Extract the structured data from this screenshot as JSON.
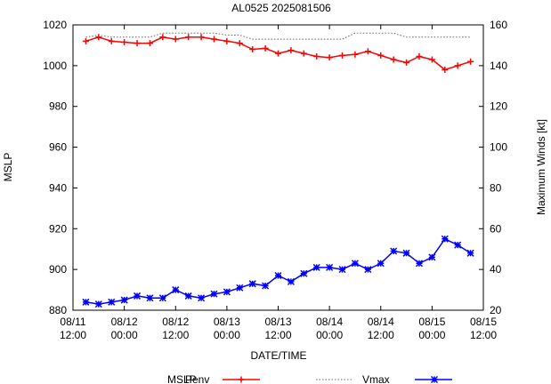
{
  "chart_data": {
    "type": "line",
    "title": "AL0525 2025081506",
    "xlabel": "DATE/TIME",
    "ylabel_left": "MSLP",
    "ylabel_right": "Maximum Winds [kt]",
    "x_ticks": [
      {
        "hours": 0,
        "line1": "08/11",
        "line2": "12:00"
      },
      {
        "hours": 12,
        "line1": "08/12",
        "line2": "00:00"
      },
      {
        "hours": 24,
        "line1": "08/12",
        "line2": "12:00"
      },
      {
        "hours": 36,
        "line1": "08/13",
        "line2": "00:00"
      },
      {
        "hours": 48,
        "line1": "08/13",
        "line2": "12:00"
      },
      {
        "hours": 60,
        "line1": "08/14",
        "line2": "00:00"
      },
      {
        "hours": 72,
        "line1": "08/14",
        "line2": "12:00"
      },
      {
        "hours": 84,
        "line1": "08/15",
        "line2": "00:00"
      },
      {
        "hours": 96,
        "line1": "08/15",
        "line2": "12:00"
      }
    ],
    "xlim_hours": [
      0,
      96
    ],
    "ylim_left": [
      880,
      1020
    ],
    "yticks_left": [
      "880",
      "900",
      "920",
      "940",
      "960",
      "980",
      "1000",
      "1020"
    ],
    "ylim_right": [
      20,
      160
    ],
    "yticks_right": [
      "20",
      "40",
      "60",
      "80",
      "100",
      "120",
      "140",
      "160"
    ],
    "legend_position": "bottom",
    "legend_heading": "MSLP",
    "series": [
      {
        "name": "Penv",
        "axis": "left",
        "color": "#ff0000",
        "marker": "plus",
        "x_hours": [
          3,
          6,
          9,
          12,
          15,
          18,
          21,
          24,
          27,
          30,
          33,
          36,
          39,
          42,
          45,
          48,
          51,
          54,
          57,
          60,
          63,
          66,
          69,
          72,
          75,
          78,
          81,
          84,
          87,
          90,
          93
        ],
        "values": [
          1012,
          1014,
          1012,
          1011.5,
          1011,
          1011,
          1014,
          1013,
          1014,
          1014,
          1013,
          1012,
          1011,
          1008,
          1008.5,
          1006,
          1007.5,
          1006,
          1004.5,
          1004,
          1005,
          1005.5,
          1007,
          1005,
          1003,
          1001.5,
          1004.5,
          1003,
          998,
          1000,
          1002
        ]
      },
      {
        "name": "",
        "axis": "left",
        "color": "#666666",
        "marker": "none",
        "dash": true,
        "x_hours": [
          3,
          6,
          9,
          12,
          15,
          18,
          21,
          24,
          27,
          30,
          33,
          36,
          39,
          42,
          45,
          48,
          51,
          54,
          57,
          60,
          63,
          66,
          69,
          72,
          75,
          78,
          81,
          84,
          87,
          90,
          93
        ],
        "values": [
          1014,
          1015,
          1014,
          1014,
          1014,
          1014,
          1016,
          1016,
          1016,
          1016,
          1016,
          1015,
          1015,
          1013,
          1013,
          1013,
          1013,
          1013,
          1013,
          1013,
          1013,
          1016,
          1016,
          1016,
          1016,
          1014,
          1014,
          1014,
          1014,
          1014,
          1014
        ]
      },
      {
        "name": "Vmax",
        "axis": "right",
        "color": "#0000ff",
        "marker": "star",
        "x_hours": [
          3,
          6,
          9,
          12,
          15,
          18,
          21,
          24,
          27,
          30,
          33,
          36,
          39,
          42,
          45,
          48,
          51,
          54,
          57,
          60,
          63,
          66,
          69,
          72,
          75,
          78,
          81,
          84,
          87,
          90,
          93
        ],
        "values": [
          24,
          23,
          24,
          25,
          27,
          26,
          26,
          30,
          27,
          26,
          28,
          29,
          31,
          33,
          32,
          37,
          34,
          38,
          41,
          41,
          40,
          43,
          40,
          43,
          49,
          48,
          43,
          46,
          55,
          52,
          48
        ]
      }
    ]
  }
}
